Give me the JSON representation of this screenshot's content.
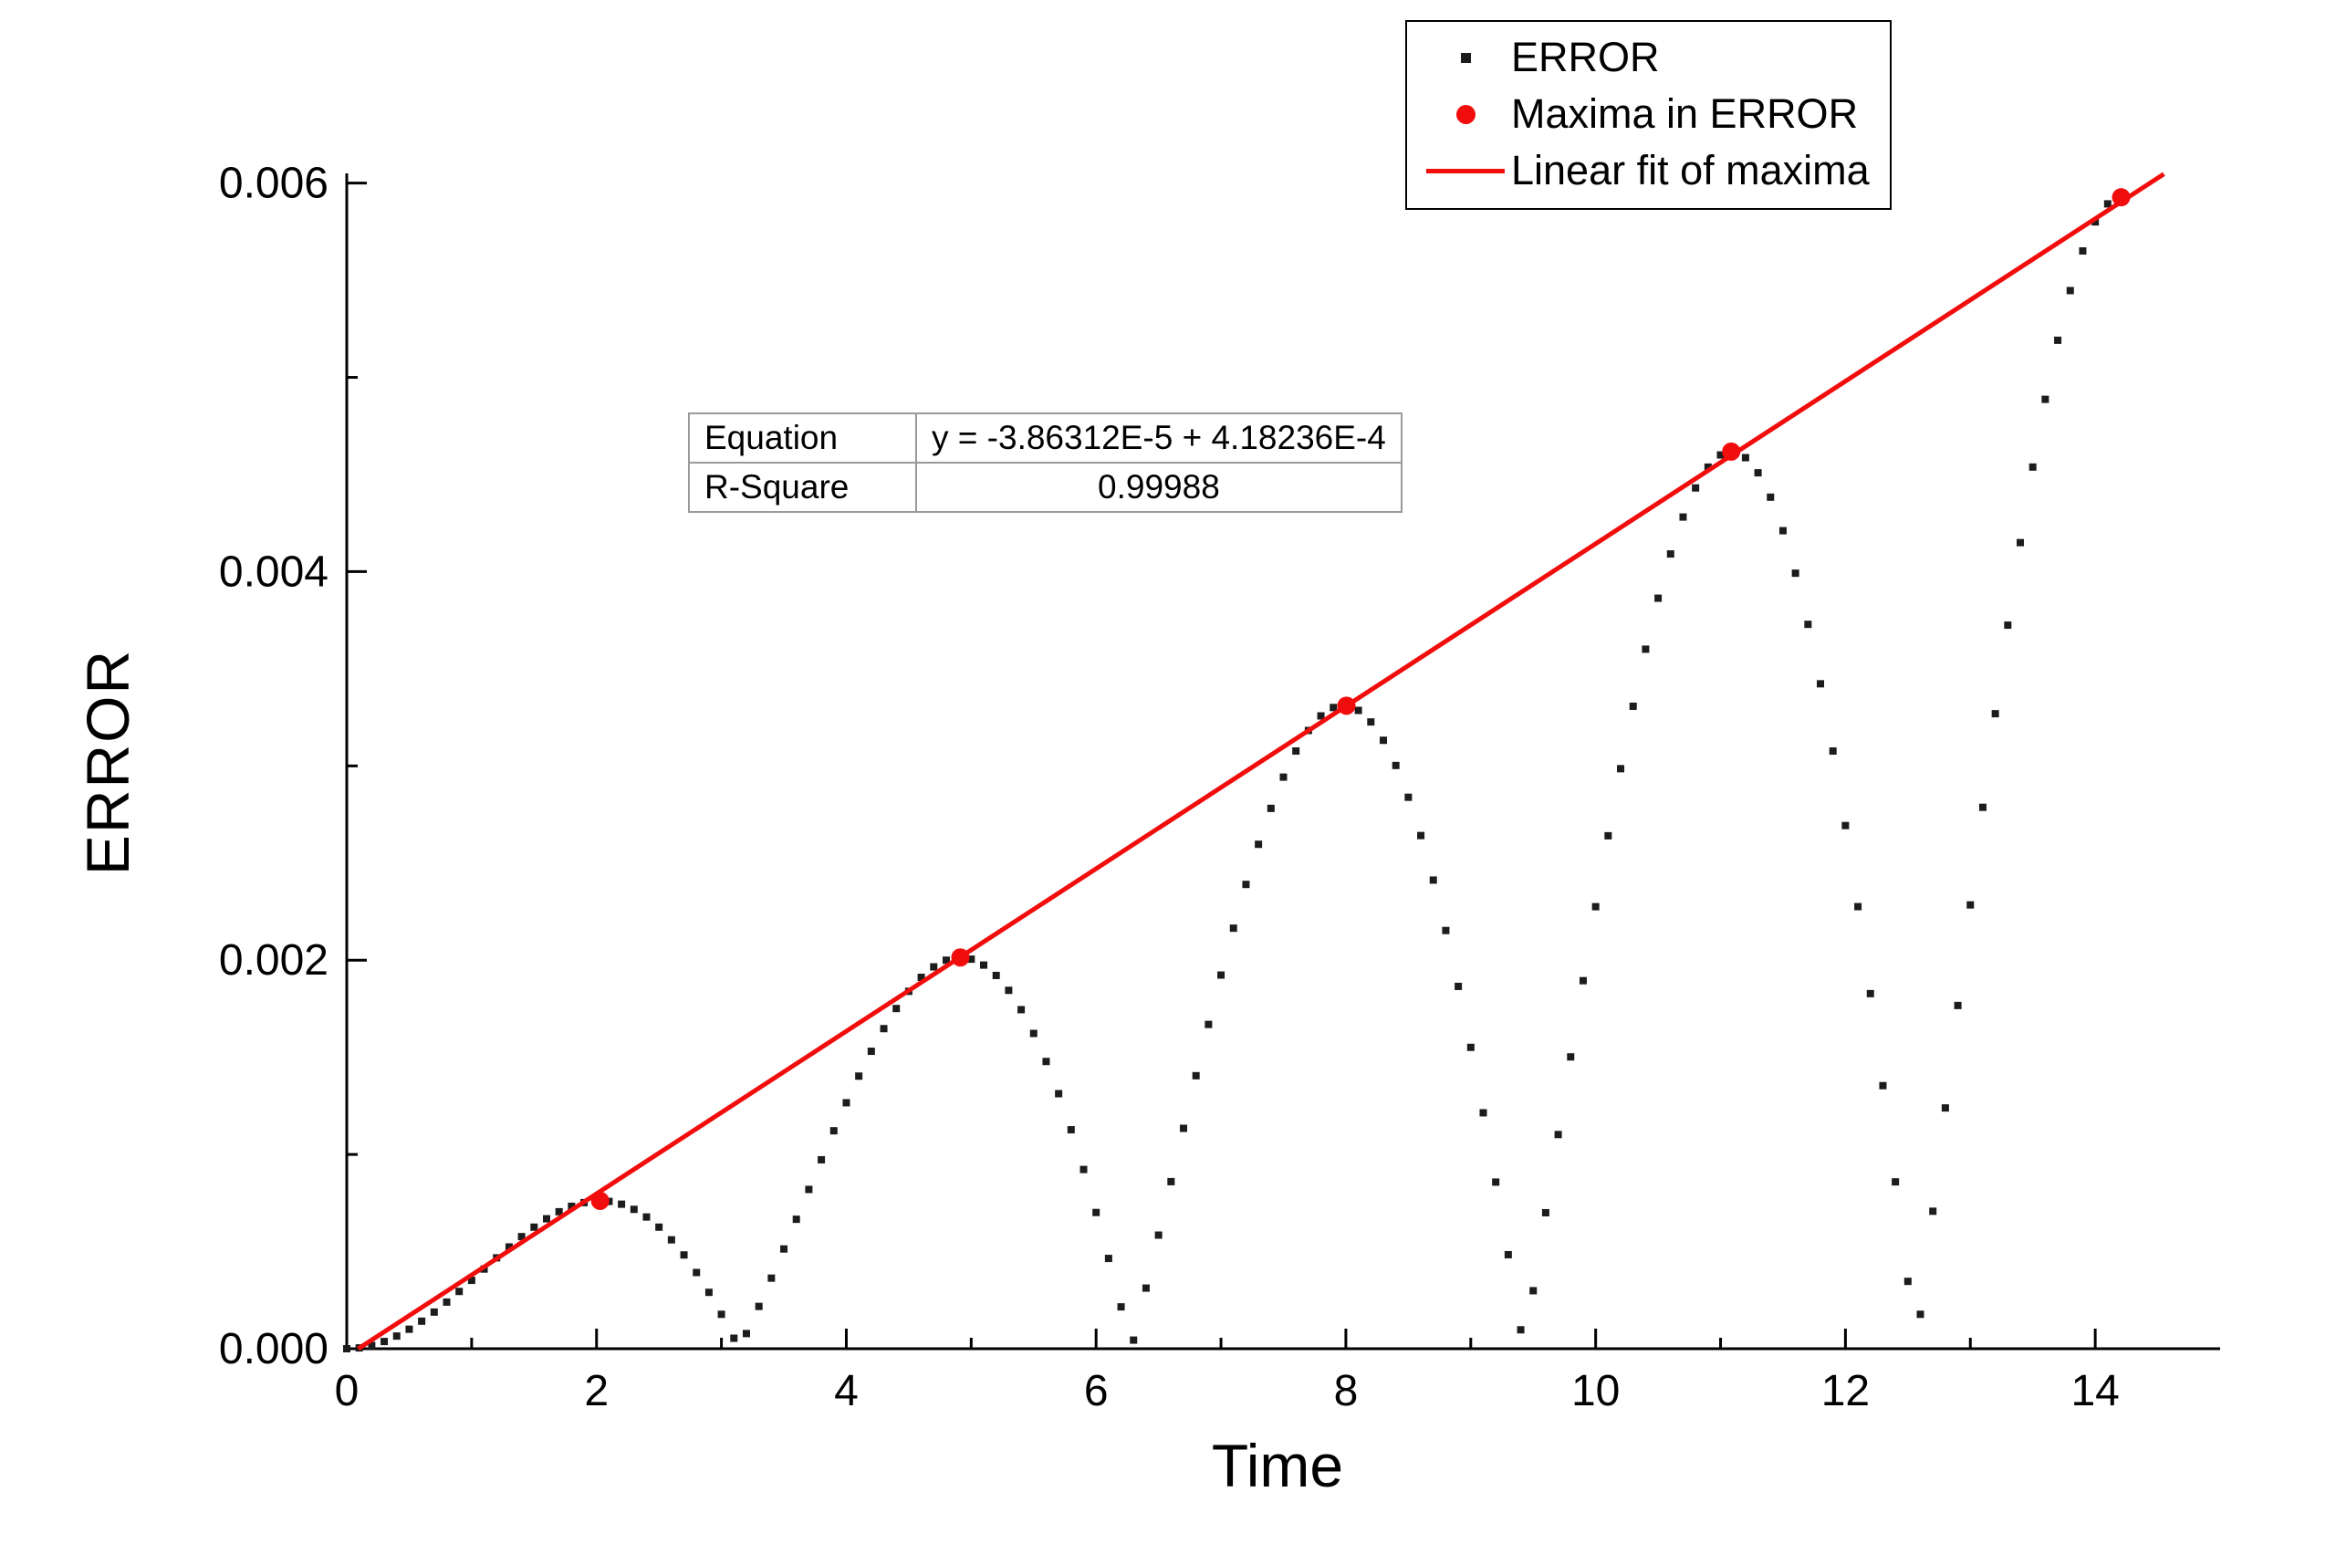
{
  "chart_data": {
    "type": "scatter",
    "title": "",
    "xlabel": "Time",
    "ylabel": "ERROR",
    "xlim": [
      0,
      15
    ],
    "ylim": [
      0,
      0.00605
    ],
    "grid": false,
    "legend_position": "top-right",
    "axis_color": "#000000",
    "x_major_ticks": [
      0,
      2,
      4,
      6,
      8,
      10,
      12,
      14
    ],
    "x_major_tick_labels": [
      "0",
      "2",
      "4",
      "6",
      "8",
      "10",
      "12",
      "14"
    ],
    "x_minor_ticks": [
      1,
      3,
      5,
      7,
      9,
      11,
      13
    ],
    "y_major_ticks": [
      0,
      0.002,
      0.004,
      0.006
    ],
    "y_major_tick_labels": [
      "0.000",
      "0.002",
      "0.004",
      "0.006"
    ],
    "y_minor_ticks": [
      0.001,
      0.003,
      0.005
    ],
    "series": [
      {
        "name": "ERROR",
        "type": "scatter",
        "marker": "square",
        "color": "#1c1c1c",
        "model": {
          "formula": "y = a * t * |sin(t)|",
          "a": 0.000418236,
          "t_min": 0,
          "t_max": 14.2,
          "t_step": 0.1
        },
        "zeros_at_x": [
          0,
          3.1416,
          6.2832,
          9.4248,
          12.5664
        ]
      },
      {
        "name": "Maxima in ERROR",
        "type": "scatter",
        "marker": "circle",
        "color": "#f20d0d",
        "points": [
          [
            2.0288,
            0.000761
          ],
          [
            4.9132,
            0.002014
          ],
          [
            8.0045,
            0.00331
          ],
          [
            11.0855,
            0.004618
          ],
          [
            14.2074,
            0.005927
          ]
        ]
      },
      {
        "name": "Linear fit of maxima",
        "type": "line",
        "color": "#f20d0d",
        "fit": {
          "intercept": -3.86312e-05,
          "slope": 0.000418236,
          "x_start": 0,
          "x_end": 14.55
        }
      }
    ],
    "annotation_table": {
      "rows": [
        {
          "label": "Equation",
          "value": "y = -3.86312E-5 + 4.18236E-4"
        },
        {
          "label": "R-Square",
          "value": "0.99988"
        }
      ]
    }
  }
}
